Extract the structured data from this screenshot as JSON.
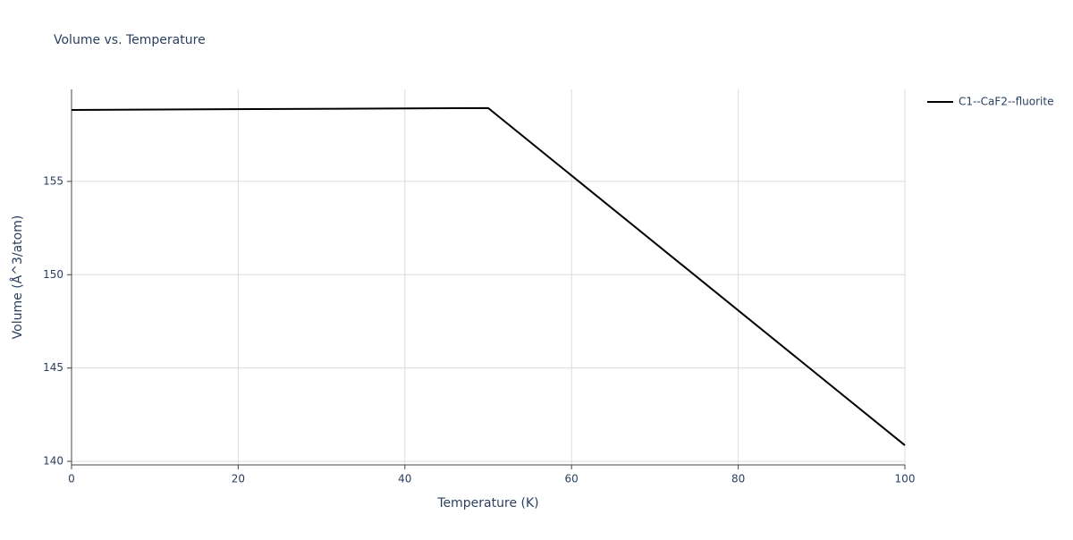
{
  "chart_data": {
    "type": "line",
    "title": "Volume vs. Temperature",
    "x_label": "Temperature (K)",
    "y_label": "Volume (Å^3/atom)",
    "x": [
      0,
      50,
      100
    ],
    "series": [
      {
        "name": "C1--CaF2--fluorite",
        "color": "#000000",
        "values": [
          158.83,
          158.93,
          140.86
        ]
      }
    ],
    "xlim": [
      0,
      100
    ],
    "xticks": [
      0,
      20,
      40,
      60,
      80,
      100
    ],
    "ylim": [
      139.81,
      159.93
    ],
    "yticks": [
      140,
      145,
      150,
      155
    ],
    "grid": true,
    "legend": "right"
  }
}
